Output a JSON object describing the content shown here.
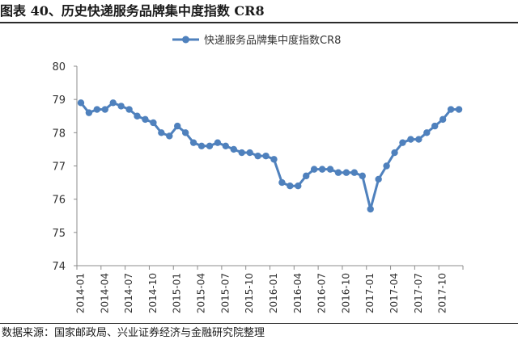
{
  "figure": {
    "title": "图表 40、历史快递服务品牌集中度指数 CR8",
    "source": "数据来源：国家邮政局、兴业证券经济与金融研究院整理"
  },
  "chart_data": {
    "type": "line",
    "title": "",
    "xlabel": "",
    "ylabel": "",
    "ylim": [
      74,
      80
    ],
    "yticks": [
      74,
      75,
      76,
      77,
      78,
      79,
      80
    ],
    "grid": false,
    "legend_position": "top-center",
    "color": "#4f81bd",
    "x": [
      "2014-01",
      "2014-02",
      "2014-03",
      "2014-04",
      "2014-05",
      "2014-06",
      "2014-07",
      "2014-08",
      "2014-09",
      "2014-10",
      "2014-11",
      "2014-12",
      "2015-01",
      "2015-02",
      "2015-03",
      "2015-04",
      "2015-05",
      "2015-06",
      "2015-07",
      "2015-08",
      "2015-09",
      "2015-10",
      "2015-11",
      "2015-12",
      "2016-01",
      "2016-02",
      "2016-03",
      "2016-04",
      "2016-05",
      "2016-06",
      "2016-07",
      "2016-08",
      "2016-09",
      "2016-10",
      "2016-11",
      "2016-12",
      "2017-01",
      "2017-02",
      "2017-03",
      "2017-04",
      "2017-05",
      "2017-06",
      "2017-07",
      "2017-08",
      "2017-09",
      "2017-10",
      "2017-11",
      "2017-12"
    ],
    "x_tick_labels": [
      "2014-01",
      "2014-04",
      "2014-07",
      "2014-10",
      "2015-01",
      "2015-04",
      "2015-07",
      "2015-10",
      "2016-01",
      "2016-04",
      "2016-07",
      "2016-10",
      "2017-01",
      "2017-04",
      "2017-07",
      "2017-10"
    ],
    "series": [
      {
        "name": "快递服务品牌集中度指数CR8",
        "values": [
          78.9,
          78.6,
          78.7,
          78.7,
          78.9,
          78.8,
          78.7,
          78.5,
          78.4,
          78.3,
          78.0,
          77.9,
          78.2,
          78.0,
          77.7,
          77.6,
          77.6,
          77.7,
          77.6,
          77.5,
          77.4,
          77.4,
          77.3,
          77.3,
          77.2,
          76.5,
          76.4,
          76.4,
          76.7,
          76.9,
          76.9,
          76.9,
          76.8,
          76.8,
          76.8,
          76.7,
          75.7,
          76.6,
          77.0,
          77.4,
          77.7,
          77.8,
          77.8,
          78.0,
          78.2,
          78.4,
          78.7,
          78.7
        ]
      }
    ]
  }
}
